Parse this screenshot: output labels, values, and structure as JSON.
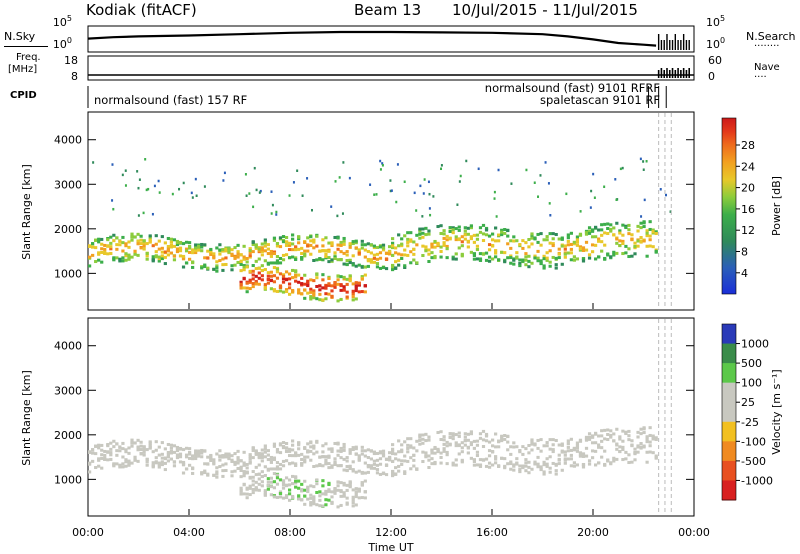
{
  "header": {
    "station": "Kodiak (fitACF)",
    "beam": "Beam 13",
    "dates": "10/Jul/2015 - 11/Jul/2015"
  },
  "left_labels": {
    "nsky": "N.Sky",
    "freq": "Freq.",
    "freq_unit": "[MHz]",
    "cpid": "CPID"
  },
  "right_labels": {
    "nsearch": "N.Search",
    "nsearch_dots": "........",
    "nave": "Nave",
    "nave_dots": "...."
  },
  "chart_data": [
    {
      "type": "line",
      "panel": "noise",
      "ytick_left": [
        "10^5",
        "10^0"
      ],
      "ytick_right": [
        "10^5",
        "10^0"
      ],
      "series": [
        {
          "name": "N.Sky",
          "x_hours": [
            0,
            1,
            2,
            4,
            6,
            8,
            10,
            12,
            14,
            16,
            18,
            19,
            20,
            21,
            22,
            22.5
          ],
          "log10_values": [
            2.6,
            2.9,
            3.1,
            3.3,
            3.6,
            3.9,
            4.1,
            4.1,
            4.0,
            3.9,
            3.6,
            3.1,
            2.4,
            1.6,
            1.2,
            1.0
          ]
        }
      ]
    },
    {
      "type": "line",
      "panel": "freq_nave",
      "ytick_left": [
        "18",
        "8"
      ],
      "ytick_right": [
        "60",
        "0"
      ],
      "freq_mhz": 10.0,
      "nave_note": "high values after 22:45"
    },
    {
      "type": "table",
      "panel": "cpid",
      "labels": [
        "normalsound (fast) 157 RF",
        "normalsound (fast) 9101 RFRF",
        "spaletascan 9101 RF"
      ]
    },
    {
      "type": "heatmap",
      "panel": "power",
      "ylabel": "Slant Range [km]",
      "yticks": [
        "4000",
        "3000",
        "2000",
        "1000"
      ],
      "colorbar_label": "Power [dB]",
      "colorbar_ticks": [
        "28",
        "24",
        "20",
        "16",
        "12",
        "8",
        "4"
      ],
      "colorbar_colors": [
        "#1a2ed8",
        "#2b5fb8",
        "#2f8a5a",
        "#3cae4a",
        "#8ccc3c",
        "#e8c82a",
        "#f2a020",
        "#ee6a1c",
        "#e43a1a",
        "#cc1a1a"
      ],
      "bands": [
        {
          "t_start": 0.0,
          "t_end": 12.0,
          "range_center_km": 1500,
          "width_km": 300,
          "peak_db": 20
        },
        {
          "t_start": 12.0,
          "t_end": 22.5,
          "range_center_km": 1600,
          "width_km": 400,
          "peak_db": 18
        },
        {
          "t_start": 6.0,
          "t_end": 11.0,
          "range_center_km": 800,
          "width_km": 300,
          "peak_db": 28
        }
      ]
    },
    {
      "type": "heatmap",
      "panel": "velocity",
      "ylabel": "Slant Range [km]",
      "yticks": [
        "4000",
        "3000",
        "2000",
        "1000"
      ],
      "xticks": [
        "00:00",
        "04:00",
        "08:00",
        "12:00",
        "16:00",
        "20:00",
        "00:00"
      ],
      "xlabel": "Time UT",
      "colorbar_label": "Velocity [m s⁻¹]",
      "colorbar_ticks": [
        "1000",
        "500",
        "100",
        "25",
        "-25",
        "-100",
        "-500",
        "-1000"
      ],
      "colorbar_colors": [
        "#2a3ab8",
        "#3a8c4a",
        "#5cc84a",
        "#c8c8c0",
        "#c8c8c0",
        "#f2c020",
        "#f08a20",
        "#e85020",
        "#d82020"
      ]
    }
  ]
}
